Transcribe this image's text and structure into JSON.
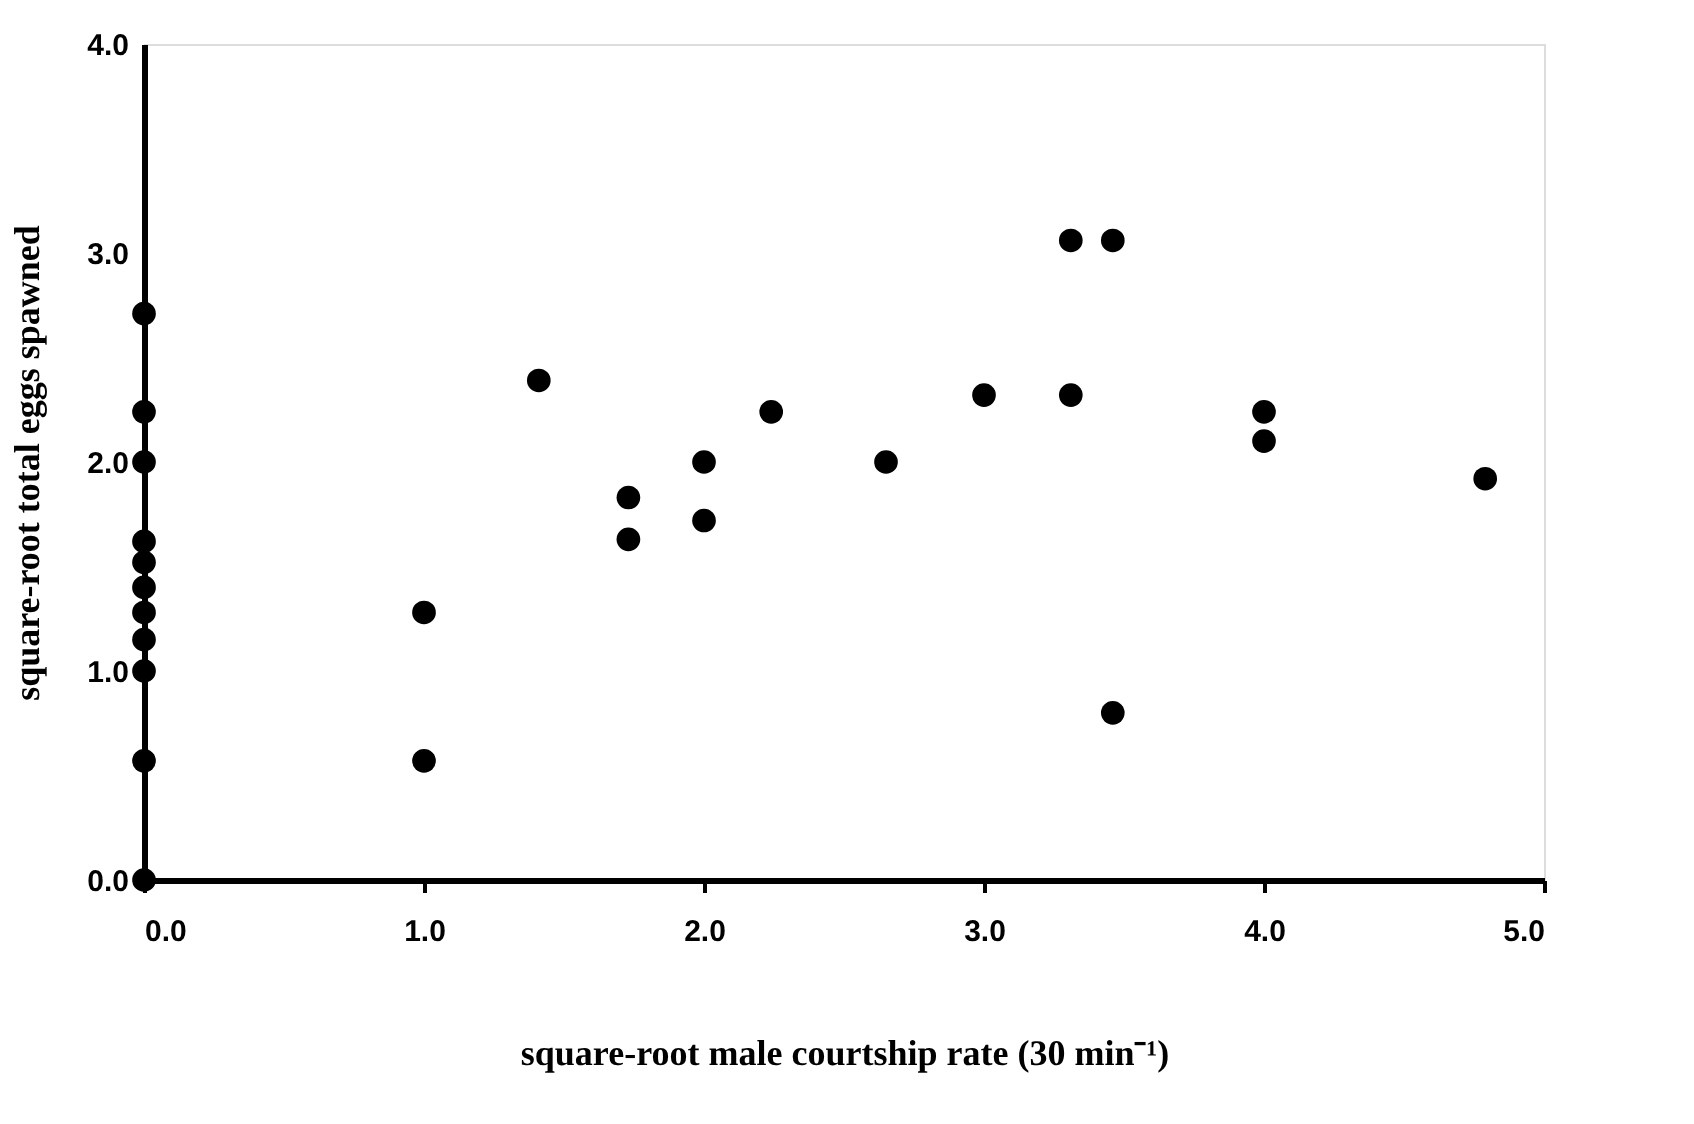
{
  "chart_data": {
    "type": "scatter",
    "xlabel": "square-root male courtship rate (30 min⁻¹)",
    "ylabel": "square-root total eggs spawned",
    "x": [
      0,
      0,
      0,
      0,
      0,
      0,
      0,
      0,
      0,
      0,
      0,
      1.0,
      1.0,
      1.41,
      1.73,
      1.73,
      2.0,
      2.0,
      2.24,
      2.65,
      3.0,
      3.31,
      3.31,
      3.46,
      3.46,
      4.0,
      4.0,
      4.79
    ],
    "series": [
      {
        "color": "#000000",
        "values": [
          0,
          0.57,
          1.0,
          1.15,
          1.28,
          1.4,
          1.52,
          1.62,
          2.0,
          2.24,
          2.71,
          1.28,
          0.57,
          2.39,
          1.83,
          1.63,
          2.0,
          1.72,
          2.24,
          2.0,
          2.32,
          3.06,
          2.32,
          3.06,
          0.8,
          2.24,
          2.1,
          1.92
        ]
      }
    ],
    "xlim": [
      0,
      5
    ],
    "ylim": [
      0,
      4
    ],
    "xticks": [
      {
        "value": 0,
        "label": "0.0"
      },
      {
        "value": 1,
        "label": "1.0"
      },
      {
        "value": 2,
        "label": "2.0"
      },
      {
        "value": 3,
        "label": "3.0"
      },
      {
        "value": 4,
        "label": "4.0"
      },
      {
        "value": 5,
        "label": "5.0"
      }
    ],
    "yticks": [
      {
        "value": 0,
        "label": "0.0"
      },
      {
        "value": 1,
        "label": "1.0"
      },
      {
        "value": 2,
        "label": "2.0"
      },
      {
        "value": 3,
        "label": "3.0"
      },
      {
        "value": 4,
        "label": "4.0"
      }
    ],
    "grid": false,
    "legend": false,
    "marker": "circle"
  }
}
